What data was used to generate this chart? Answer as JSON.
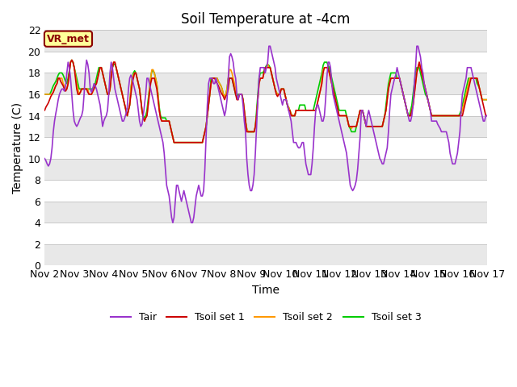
{
  "title": "Soil Temperature at -4cm",
  "xlabel": "Time",
  "ylabel": "Temperature (C)",
  "ylim": [
    0,
    22
  ],
  "yticks": [
    0,
    2,
    4,
    6,
    8,
    10,
    12,
    14,
    16,
    18,
    20,
    22
  ],
  "xlim": [
    0,
    360
  ],
  "xtick_labels": [
    "Nov 2",
    "Nov 3",
    "Nov 4",
    "Nov 5",
    "Nov 6",
    "Nov 7",
    "Nov 8",
    "Nov 9",
    "Nov 10",
    "Nov 11",
    "Nov 12",
    "Nov 13",
    "Nov 14",
    "Nov 15",
    "Nov 16",
    "Nov 17"
  ],
  "xtick_positions": [
    0,
    24,
    48,
    72,
    96,
    120,
    144,
    168,
    192,
    216,
    240,
    264,
    288,
    312,
    336,
    360
  ],
  "fig_bg_color": "#ffffff",
  "plot_bg_color": "#ffffff",
  "band_colors": [
    "#e8e8e8",
    "#ffffff"
  ],
  "grid_color": "#c8c8c8",
  "annotation_text": "VR_met",
  "annotation_box_color": "#ffff99",
  "annotation_text_color": "#8b0000",
  "line_colors": {
    "Tair": "#9933cc",
    "Tsoil1": "#cc0000",
    "Tsoil2": "#ff9900",
    "Tsoil3": "#00cc00"
  },
  "legend_labels": [
    "Tair",
    "Tsoil set 1",
    "Tsoil set 2",
    "Tsoil set 3"
  ],
  "line_width": 1.2,
  "title_fontsize": 12,
  "label_fontsize": 10,
  "tick_fontsize": 9,
  "tair": [
    10.0,
    9.8,
    9.5,
    9.3,
    9.5,
    10.0,
    11.0,
    12.5,
    13.5,
    14.2,
    14.8,
    15.5,
    16.0,
    16.3,
    16.5,
    16.5,
    16.3,
    16.8,
    18.0,
    19.0,
    18.5,
    17.5,
    16.0,
    14.5,
    13.5,
    13.2,
    13.0,
    13.2,
    13.5,
    13.8,
    14.0,
    14.5,
    16.0,
    18.0,
    19.2,
    18.8,
    18.0,
    16.5,
    16.2,
    16.5,
    17.0,
    16.8,
    16.5,
    16.0,
    15.5,
    15.0,
    14.0,
    13.0,
    13.5,
    13.8,
    14.0,
    14.5,
    16.0,
    18.0,
    19.0,
    18.5,
    17.5,
    16.5,
    16.0,
    15.5,
    15.0,
    14.5,
    14.0,
    13.5,
    13.5,
    13.8,
    14.2,
    14.8,
    16.5,
    17.5,
    17.8,
    17.5,
    17.0,
    16.5,
    16.0,
    15.5,
    14.5,
    13.5,
    13.0,
    13.2,
    14.0,
    15.0,
    16.0,
    17.5,
    17.5,
    17.0,
    16.5,
    16.0,
    15.5,
    15.0,
    14.5,
    14.0,
    13.5,
    13.0,
    12.5,
    12.0,
    11.5,
    10.5,
    9.0,
    7.5,
    7.0,
    6.5,
    5.5,
    4.5,
    4.0,
    4.5,
    6.0,
    7.5,
    7.5,
    7.0,
    6.5,
    6.0,
    6.5,
    7.0,
    6.5,
    6.0,
    5.5,
    5.0,
    4.5,
    4.0,
    4.0,
    4.5,
    5.5,
    6.5,
    7.0,
    7.5,
    7.0,
    6.5,
    6.5,
    7.0,
    9.0,
    12.0,
    15.0,
    17.0,
    17.5,
    17.5,
    17.5,
    17.0,
    17.0,
    17.5,
    17.0,
    16.5,
    16.0,
    15.5,
    15.0,
    14.5,
    14.0,
    14.5,
    15.5,
    17.5,
    19.5,
    19.8,
    19.5,
    19.0,
    18.0,
    17.5,
    16.0,
    15.5,
    16.0,
    16.0,
    16.0,
    15.0,
    13.5,
    12.5,
    10.0,
    8.5,
    7.5,
    7.0,
    7.0,
    7.5,
    8.5,
    10.5,
    13.0,
    15.5,
    17.5,
    18.5,
    18.5,
    18.5,
    18.5,
    18.0,
    18.5,
    19.0,
    20.5,
    20.5,
    20.0,
    19.5,
    19.0,
    18.5,
    17.5,
    17.0,
    16.5,
    16.0,
    15.5,
    15.0,
    15.5,
    15.5,
    15.5,
    15.0,
    14.5,
    14.0,
    13.5,
    12.5,
    11.5,
    11.5,
    11.5,
    11.2,
    11.0,
    11.0,
    11.2,
    11.5,
    11.5,
    10.5,
    9.5,
    9.0,
    8.5,
    8.5,
    8.5,
    9.5,
    11.0,
    13.0,
    14.5,
    15.0,
    15.0,
    14.5,
    14.0,
    13.5,
    13.5,
    14.0,
    15.5,
    17.5,
    19.0,
    19.0,
    18.5,
    17.0,
    16.0,
    15.5,
    15.0,
    14.5,
    14.0,
    13.5,
    13.0,
    12.5,
    12.0,
    11.5,
    11.0,
    10.5,
    9.5,
    8.5,
    7.5,
    7.2,
    7.0,
    7.2,
    7.5,
    8.0,
    9.0,
    10.5,
    12.0,
    14.5,
    14.5,
    14.0,
    13.5,
    13.0,
    14.0,
    14.5,
    14.0,
    13.5,
    13.0,
    12.5,
    12.0,
    11.5,
    11.0,
    10.5,
    10.0,
    9.8,
    9.5,
    9.5,
    10.0,
    10.5,
    11.0,
    12.5,
    14.5,
    16.0,
    16.5,
    17.0,
    17.5,
    17.8,
    18.5,
    18.0,
    17.5,
    17.0,
    16.5,
    16.0,
    15.5,
    15.0,
    14.5,
    14.0,
    13.5,
    13.5,
    14.0,
    15.0,
    17.0,
    18.5,
    20.5,
    20.5,
    20.0,
    19.5,
    18.5,
    18.0,
    17.0,
    16.5,
    16.0,
    15.5,
    15.0,
    14.5,
    13.5,
    13.5,
    13.5,
    13.5,
    13.5,
    13.2,
    13.0,
    12.8,
    12.5,
    12.5,
    12.5,
    12.5,
    12.5,
    12.0,
    11.5,
    10.5,
    10.0,
    9.5,
    9.5,
    9.5,
    10.0,
    10.5,
    11.5,
    12.5,
    14.5,
    16.0,
    16.5,
    17.0,
    17.5,
    18.5,
    18.5,
    18.5,
    18.5,
    18.0,
    17.5,
    17.0,
    16.5,
    16.0,
    15.5,
    15.0,
    14.5,
    14.0,
    13.5,
    13.5,
    14.0,
    14.0
  ],
  "tsoil1": [
    14.5,
    14.8,
    15.0,
    15.2,
    15.5,
    15.8,
    16.0,
    16.2,
    16.5,
    16.8,
    17.0,
    17.5,
    17.5,
    17.2,
    17.0,
    16.8,
    16.5,
    16.3,
    16.5,
    17.0,
    18.0,
    19.0,
    19.2,
    19.0,
    18.5,
    17.5,
    16.5,
    16.0,
    16.0,
    16.2,
    16.5,
    16.5,
    16.5,
    16.5,
    16.5,
    16.2,
    16.0,
    16.0,
    16.0,
    16.3,
    16.5,
    16.8,
    17.0,
    17.5,
    18.0,
    18.5,
    18.5,
    18.0,
    17.5,
    17.0,
    16.5,
    16.0,
    16.0,
    16.5,
    17.5,
    18.5,
    19.0,
    19.0,
    18.5,
    18.0,
    17.5,
    17.0,
    16.5,
    16.0,
    15.5,
    15.0,
    14.5,
    14.0,
    14.5,
    15.0,
    16.0,
    17.0,
    17.5,
    18.0,
    18.0,
    17.5,
    17.0,
    16.5,
    15.5,
    14.5,
    13.8,
    13.5,
    13.8,
    14.0,
    15.0,
    16.0,
    17.0,
    17.5,
    17.5,
    17.5,
    17.0,
    16.5,
    15.5,
    14.5,
    13.8,
    13.5,
    13.5,
    13.5,
    13.5,
    13.5,
    13.5,
    13.5,
    13.0,
    12.5,
    12.0,
    11.5,
    11.5,
    11.5,
    11.5,
    11.5,
    11.5,
    11.5,
    11.5,
    11.5,
    11.5,
    11.5,
    11.5,
    11.5,
    11.5,
    11.5,
    11.5,
    11.5,
    11.5,
    11.5,
    11.5,
    11.5,
    11.5,
    11.5,
    11.5,
    12.0,
    12.5,
    13.0,
    14.0,
    15.0,
    16.0,
    17.0,
    17.5,
    17.5,
    17.5,
    17.2,
    17.0,
    16.8,
    16.5,
    16.2,
    16.0,
    15.8,
    15.5,
    15.8,
    16.0,
    16.5,
    17.5,
    17.5,
    17.5,
    17.0,
    16.5,
    16.0,
    15.5,
    15.5,
    16.0,
    16.0,
    16.0,
    15.5,
    14.5,
    13.5,
    12.5,
    12.5,
    12.5,
    12.5,
    12.5,
    12.5,
    12.5,
    13.0,
    14.0,
    15.5,
    17.0,
    17.5,
    17.5,
    17.5,
    18.0,
    18.5,
    18.5,
    18.5,
    18.5,
    18.5,
    18.0,
    17.5,
    17.0,
    16.5,
    16.0,
    15.8,
    16.0,
    16.0,
    16.5,
    16.5,
    16.5,
    16.0,
    15.5,
    15.0,
    14.5,
    14.5,
    14.0,
    14.0,
    14.0,
    14.0,
    14.5,
    14.5,
    14.5,
    14.5,
    14.5,
    14.5,
    14.5,
    14.5,
    14.5,
    14.5,
    14.5,
    14.5,
    14.5,
    14.5,
    14.5,
    14.5,
    14.5,
    15.0,
    15.5,
    16.0,
    16.5,
    17.0,
    18.0,
    18.5,
    18.5,
    18.5,
    18.5,
    18.0,
    17.5,
    17.0,
    16.5,
    16.0,
    15.5,
    15.0,
    14.5,
    14.0,
    14.0,
    14.0,
    14.0,
    14.0,
    14.0,
    14.0,
    13.5,
    13.0,
    13.0,
    13.0,
    13.0,
    13.0,
    13.0,
    13.0,
    13.5,
    14.0,
    14.5,
    14.5,
    14.5,
    14.0,
    13.5,
    13.0,
    13.0,
    13.0,
    13.0,
    13.0,
    13.0,
    13.0,
    13.0,
    13.0,
    13.0,
    13.0,
    13.0,
    13.0,
    13.0,
    13.5,
    14.0,
    14.5,
    15.5,
    16.5,
    17.0,
    17.5,
    17.5,
    17.5,
    17.5,
    17.5,
    17.5,
    17.5,
    17.5,
    17.0,
    16.5,
    16.0,
    15.5,
    15.0,
    14.5,
    14.0,
    14.0,
    14.0,
    14.5,
    15.0,
    16.0,
    17.0,
    18.0,
    18.5,
    19.0,
    18.5,
    18.0,
    17.5,
    17.0,
    16.5,
    16.0,
    15.5,
    15.0,
    14.5,
    14.0,
    14.0,
    14.0,
    14.0,
    14.0,
    14.0,
    14.0,
    14.0,
    14.0,
    14.0,
    14.0,
    14.0,
    14.0,
    14.0,
    14.0,
    14.0,
    14.0,
    14.0,
    14.0,
    14.0,
    14.0,
    14.0,
    14.0,
    14.0,
    14.0,
    14.0,
    14.5,
    15.0,
    15.5,
    16.0,
    16.5,
    17.0,
    17.5,
    17.5,
    17.5,
    17.5,
    17.5,
    17.5,
    17.0,
    16.5,
    16.0,
    15.5,
    15.0,
    14.5,
    14.0,
    14.0
  ],
  "tsoil2": [
    16.0,
    16.0,
    16.0,
    16.0,
    16.0,
    16.0,
    16.0,
    16.2,
    16.5,
    16.8,
    17.0,
    17.5,
    17.5,
    17.5,
    17.5,
    17.0,
    16.8,
    16.5,
    16.5,
    17.0,
    18.0,
    19.0,
    19.2,
    19.0,
    18.5,
    17.8,
    17.0,
    16.5,
    16.0,
    16.2,
    16.5,
    16.5,
    16.5,
    16.5,
    16.5,
    16.5,
    16.0,
    16.0,
    16.0,
    16.2,
    16.5,
    16.8,
    17.0,
    17.5,
    18.0,
    18.5,
    18.5,
    18.0,
    17.5,
    17.0,
    16.5,
    16.0,
    16.0,
    16.5,
    17.8,
    18.5,
    19.0,
    19.0,
    18.5,
    18.0,
    17.5,
    17.0,
    16.5,
    16.0,
    15.5,
    15.0,
    14.5,
    14.0,
    14.5,
    15.0,
    16.5,
    17.5,
    17.8,
    18.0,
    18.0,
    17.5,
    17.0,
    16.5,
    15.5,
    14.5,
    13.8,
    13.5,
    13.8,
    14.0,
    15.0,
    16.5,
    17.5,
    18.3,
    18.3,
    18.0,
    17.5,
    17.0,
    16.0,
    14.5,
    13.8,
    13.5,
    13.5,
    13.5,
    13.5,
    13.5,
    13.5,
    13.5,
    13.0,
    12.5,
    12.0,
    11.5,
    11.5,
    11.5,
    11.5,
    11.5,
    11.5,
    11.5,
    11.5,
    11.5,
    11.5,
    11.5,
    11.5,
    11.5,
    11.5,
    11.5,
    11.5,
    11.5,
    11.5,
    11.5,
    11.5,
    11.5,
    11.5,
    11.5,
    11.5,
    12.0,
    12.5,
    13.0,
    14.0,
    15.0,
    16.0,
    17.0,
    17.5,
    17.5,
    17.5,
    17.5,
    17.5,
    17.2,
    17.0,
    16.8,
    16.5,
    16.0,
    15.8,
    16.0,
    16.5,
    17.5,
    18.3,
    18.3,
    18.0,
    17.5,
    17.0,
    16.5,
    15.8,
    15.5,
    16.0,
    16.0,
    16.0,
    15.5,
    14.5,
    13.5,
    12.8,
    12.5,
    12.5,
    12.5,
    12.5,
    12.5,
    12.5,
    13.0,
    14.0,
    15.5,
    17.0,
    17.5,
    17.5,
    17.5,
    18.0,
    18.5,
    18.5,
    18.8,
    18.5,
    18.5,
    18.0,
    17.5,
    17.0,
    16.5,
    16.2,
    16.0,
    16.0,
    16.2,
    16.5,
    16.5,
    16.5,
    16.0,
    15.5,
    15.0,
    14.8,
    14.5,
    14.2,
    14.0,
    14.0,
    14.0,
    14.5,
    14.5,
    14.5,
    14.5,
    14.5,
    14.5,
    14.5,
    14.5,
    14.5,
    14.5,
    14.5,
    14.5,
    14.5,
    14.5,
    14.5,
    14.5,
    14.5,
    15.0,
    15.5,
    16.0,
    16.5,
    17.5,
    18.3,
    18.5,
    18.5,
    18.5,
    18.3,
    18.0,
    17.5,
    17.0,
    16.5,
    16.0,
    15.5,
    15.0,
    14.5,
    14.0,
    14.0,
    14.0,
    14.0,
    14.0,
    14.0,
    14.0,
    13.5,
    13.0,
    13.0,
    12.8,
    13.0,
    13.0,
    13.0,
    13.0,
    13.5,
    14.0,
    14.5,
    14.5,
    14.5,
    14.0,
    13.5,
    13.0,
    13.0,
    13.0,
    13.0,
    13.0,
    13.0,
    13.0,
    13.0,
    13.0,
    13.0,
    13.0,
    13.0,
    13.0,
    13.0,
    13.5,
    14.0,
    14.5,
    15.5,
    16.5,
    17.2,
    17.5,
    17.5,
    17.5,
    17.5,
    17.5,
    17.5,
    17.5,
    17.5,
    17.0,
    16.5,
    16.0,
    15.5,
    15.0,
    14.5,
    14.0,
    14.0,
    14.0,
    14.5,
    15.0,
    16.0,
    17.0,
    18.0,
    18.5,
    19.0,
    18.5,
    18.0,
    17.5,
    17.0,
    16.5,
    16.0,
    15.5,
    15.0,
    14.5,
    14.0,
    14.0,
    14.0,
    14.0,
    14.0,
    14.0,
    14.0,
    14.0,
    14.0,
    14.0,
    14.0,
    14.0,
    14.0,
    14.0,
    14.0,
    14.0,
    14.0,
    14.0,
    14.0,
    14.0,
    14.0,
    14.0,
    14.0,
    14.0,
    14.2,
    14.5,
    15.0,
    15.5,
    16.0,
    16.5,
    17.0,
    17.5,
    17.5,
    17.5,
    17.5,
    17.5,
    17.5,
    17.5,
    17.0,
    16.5,
    16.0,
    15.5,
    15.5,
    15.5,
    15.5,
    15.5
  ],
  "tsoil3": [
    16.0,
    16.0,
    16.0,
    16.0,
    16.0,
    16.2,
    16.5,
    16.8,
    17.0,
    17.2,
    17.5,
    17.8,
    18.0,
    18.0,
    18.0,
    17.8,
    17.5,
    17.2,
    17.0,
    17.5,
    18.2,
    19.0,
    19.2,
    19.0,
    18.5,
    18.0,
    17.5,
    17.0,
    16.5,
    16.5,
    16.5,
    16.5,
    16.5,
    16.5,
    16.5,
    16.5,
    16.5,
    16.5,
    16.5,
    16.5,
    16.8,
    17.0,
    17.5,
    18.0,
    18.5,
    18.5,
    18.5,
    18.0,
    17.5,
    17.0,
    16.5,
    16.0,
    16.0,
    16.5,
    17.8,
    18.5,
    18.8,
    18.8,
    18.5,
    18.0,
    17.5,
    17.0,
    16.5,
    16.0,
    15.5,
    15.0,
    14.5,
    14.0,
    14.5,
    15.0,
    16.5,
    17.5,
    18.0,
    18.2,
    18.0,
    17.5,
    17.0,
    16.5,
    15.5,
    14.5,
    14.0,
    13.8,
    14.0,
    14.5,
    15.5,
    16.5,
    17.5,
    18.2,
    18.2,
    18.0,
    17.5,
    17.0,
    16.0,
    14.8,
    14.0,
    13.8,
    13.8,
    13.8,
    13.8,
    13.5,
    13.5,
    13.5,
    13.0,
    12.5,
    12.0,
    11.5,
    11.5,
    11.5,
    11.5,
    11.5,
    11.5,
    11.5,
    11.5,
    11.5,
    11.5,
    11.5,
    11.5,
    11.5,
    11.5,
    11.5,
    11.5,
    11.5,
    11.5,
    11.5,
    11.5,
    11.5,
    11.5,
    11.5,
    11.5,
    12.0,
    12.5,
    13.0,
    14.0,
    15.0,
    16.0,
    17.5,
    17.5,
    17.5,
    17.5,
    17.5,
    17.5,
    17.2,
    17.0,
    16.8,
    16.5,
    16.0,
    15.8,
    16.0,
    16.5,
    17.5,
    17.5,
    17.5,
    17.5,
    17.0,
    16.5,
    16.0,
    15.8,
    16.0,
    16.0,
    16.0,
    16.0,
    15.5,
    14.5,
    13.5,
    12.8,
    12.5,
    12.5,
    12.5,
    12.5,
    12.5,
    12.5,
    13.0,
    14.5,
    16.0,
    17.5,
    18.0,
    18.0,
    18.0,
    18.2,
    18.5,
    18.7,
    18.8,
    18.7,
    18.5,
    18.0,
    17.5,
    17.0,
    16.5,
    16.2,
    16.0,
    16.0,
    16.2,
    16.5,
    16.5,
    16.5,
    16.0,
    15.5,
    15.0,
    14.8,
    14.5,
    14.2,
    14.0,
    14.0,
    14.0,
    14.5,
    14.5,
    14.5,
    15.0,
    15.0,
    15.0,
    15.0,
    15.0,
    14.5,
    14.5,
    14.5,
    14.5,
    14.5,
    14.5,
    14.5,
    15.0,
    15.5,
    16.0,
    16.5,
    17.0,
    17.5,
    18.0,
    18.7,
    19.0,
    19.0,
    19.0,
    18.7,
    18.5,
    18.0,
    17.5,
    17.0,
    16.5,
    16.0,
    15.5,
    15.0,
    14.5,
    14.5,
    14.5,
    14.5,
    14.5,
    14.5,
    14.0,
    13.5,
    13.0,
    12.8,
    12.5,
    12.5,
    12.5,
    12.5,
    13.0,
    13.5,
    14.0,
    14.5,
    14.5,
    14.5,
    14.0,
    13.5,
    13.0,
    13.0,
    13.0,
    13.0,
    13.0,
    13.0,
    13.0,
    13.0,
    13.0,
    13.0,
    13.0,
    13.0,
    13.0,
    13.0,
    13.5,
    14.0,
    15.0,
    16.0,
    17.0,
    17.5,
    18.0,
    18.0,
    18.0,
    18.0,
    18.0,
    17.5,
    17.5,
    17.5,
    17.0,
    16.5,
    16.0,
    15.5,
    15.0,
    14.5,
    14.0,
    14.0,
    14.5,
    15.0,
    16.0,
    17.0,
    18.0,
    18.5,
    18.5,
    18.5,
    18.0,
    17.5,
    17.0,
    16.5,
    16.0,
    15.8,
    15.5,
    15.0,
    14.5,
    14.0,
    14.0,
    14.0,
    14.0,
    14.0,
    14.0,
    14.0,
    14.0,
    14.0,
    14.0,
    14.0,
    14.0,
    14.0,
    14.0,
    14.0,
    14.0,
    14.0,
    14.0,
    14.0,
    14.0,
    14.0,
    14.0,
    14.0,
    14.2,
    14.5,
    15.0,
    15.5,
    16.0,
    16.5,
    17.0,
    17.5,
    17.5,
    17.5,
    17.5,
    17.5,
    17.5,
    17.5,
    17.0,
    16.8,
    16.5,
    16.0,
    15.5,
    15.5,
    15.5,
    15.5,
    15.5
  ]
}
